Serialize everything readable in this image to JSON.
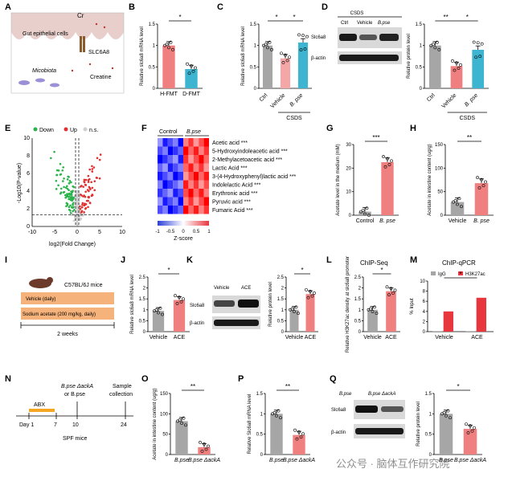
{
  "colors": {
    "gray": "#a6a6a6",
    "coral": "#f08080",
    "teal": "#3db5d0",
    "pink": "#f5a6a6",
    "red": "#e03030",
    "green": "#2ab34a",
    "lightgray": "#cfcfcf",
    "orange": "#f5a623",
    "rose": "#f28a8a",
    "hot": "#e8363f"
  },
  "panels": {
    "A": {
      "label": "A",
      "gut": "Gut epithelial cells",
      "cr": "Cr",
      "slc": "SLC6A8",
      "micro": "Micobiota",
      "creatine": "Creatine"
    },
    "B": {
      "label": "B",
      "ylabel": "Relative slc6a8 mRNA level",
      "star": "*"
    },
    "C": {
      "label": "C",
      "ylabel": "Relative slc6a8 mRNA level",
      "group": "CSDS",
      "stars": [
        "*",
        "*"
      ]
    },
    "D": {
      "label": "D",
      "header": "CSDS",
      "lanes": [
        "Ctrl",
        "Vehicle",
        "B.pse"
      ],
      "rows": [
        "Slc6a8",
        "β-actin"
      ],
      "ylabel": "Relative protein level",
      "group": "CSDS",
      "stars": [
        "**",
        "*"
      ]
    },
    "E": {
      "label": "E",
      "legend": [
        "Down",
        "Up",
        "n.s."
      ],
      "ylabel": "-Log10(P-value)",
      "xlabel": "log2(Fold Change)"
    },
    "F": {
      "label": "F",
      "cols": [
        "Control",
        "B.pse"
      ],
      "metabolites": [
        "Acetic acid",
        "5-Hydroxyindoleacetic acid",
        "2-Methylacetoacetic acid",
        "Lactic Acid",
        "3-(4-Hydroxyphenyl)lactic acid",
        "Indolelactic Acid",
        "Erythronic acid",
        "Pyruvic acid",
        "Fumaric Acid"
      ],
      "sig": [
        "***",
        "***",
        "***",
        "***",
        "***",
        "***",
        "***",
        "***",
        "***"
      ],
      "scale": [
        "-1",
        "-0.5",
        "0",
        "0.5",
        "1"
      ],
      "scale_label": "Z-score"
    },
    "G": {
      "label": "G",
      "ylabel": "Acetate level in the medium (mM)",
      "star": "***"
    },
    "H": {
      "label": "H",
      "ylabel": "Acetate in intestine content (ug/g)",
      "star": "**"
    },
    "I": {
      "label": "I",
      "mice": "C57BL/6J mice",
      "vehicle": "Vehicle (daily)",
      "acetate": "Sodium acetate (200 mg/kg, daily)",
      "weeks": "2 weeks"
    },
    "J": {
      "label": "J",
      "ylabel": "Relative slc6a8 mRNA level",
      "star": "*"
    },
    "K": {
      "label": "K",
      "lanes": [
        "Vehicle",
        "ACE"
      ],
      "rows": [
        "Slc6a8",
        "β-actin"
      ],
      "ylabel": "Relative protein level",
      "star": "*"
    },
    "L": {
      "label": "L",
      "title": "ChIP-Seq",
      "ylabel": "Relative H3K27ac density at slc6a8 promoter",
      "star": "*"
    },
    "M": {
      "label": "M",
      "title": "ChIP-qPCR",
      "legend": [
        "IgG",
        "H3K27ac"
      ],
      "ylabel": "% Input",
      "star": "*"
    },
    "N": {
      "label": "N",
      "abx": "ABX",
      "treat": "B.pse ΔackA",
      "treat2": "or B.pse",
      "collect": "Sample",
      "collect2": "collection",
      "ticks": [
        "Day 1",
        "7",
        "10",
        "24"
      ],
      "mice": "SPF mice"
    },
    "O": {
      "label": "O",
      "ylabel": "Acetate in intestine content (ug/g)",
      "star": "**"
    },
    "P": {
      "label": "P",
      "ylabel": "Relative Slc6a8 mRNA level",
      "star": "**"
    },
    "Q": {
      "label": "Q",
      "lanes": [
        "B.pse",
        "B.pse ΔackA"
      ],
      "rows": [
        "Slc6a8",
        "β-actin"
      ],
      "ylabel": "Relative protein level",
      "star": "*"
    }
  },
  "watermark": "公众号 · 脑体互作研究院",
  "chart_data": [
    {
      "type": "bar",
      "panel": "B",
      "categories": [
        "H-FMT",
        "D-FMT"
      ],
      "values": [
        1.0,
        0.45
      ],
      "ylim": [
        0,
        1.5
      ],
      "yticks": [
        0,
        0.5,
        1,
        1.5
      ]
    },
    {
      "type": "bar",
      "panel": "C",
      "categories": [
        "Ctrl",
        "Vehicle",
        "B. pse"
      ],
      "values": [
        1.0,
        0.7,
        1.07
      ],
      "ylim": [
        0,
        1.5
      ],
      "yticks": [
        0,
        0.5,
        1,
        1.5
      ]
    },
    {
      "type": "bar",
      "panel": "D",
      "categories": [
        "Ctrl",
        "Vehicle",
        "B. pse"
      ],
      "values": [
        1.0,
        0.52,
        0.9
      ],
      "ylim": [
        0,
        1.5
      ],
      "yticks": [
        0,
        0.5,
        1,
        1.5
      ]
    },
    {
      "type": "scatter",
      "panel": "E",
      "xlim": [
        -10,
        10
      ],
      "ylim": [
        0,
        10
      ],
      "xticks": [
        -10,
        -5,
        0,
        5,
        10
      ],
      "yticks": [
        0,
        2,
        4,
        6,
        8,
        10
      ]
    },
    {
      "type": "bar",
      "panel": "G",
      "categories": [
        "Control",
        "B. pse"
      ],
      "values": [
        1.5,
        22.5
      ],
      "ylim": [
        0,
        30
      ],
      "yticks": [
        0,
        10,
        20,
        30
      ]
    },
    {
      "type": "bar",
      "panel": "H",
      "categories": [
        "Vehicle",
        "B. pse"
      ],
      "values": [
        28,
        68
      ],
      "ylim": [
        0,
        150
      ],
      "yticks": [
        0,
        50,
        100,
        150
      ]
    },
    {
      "type": "bar",
      "panel": "J",
      "categories": [
        "Vehicle",
        "ACE"
      ],
      "values": [
        0.95,
        1.45
      ],
      "ylim": [
        0,
        2.5
      ],
      "yticks": [
        0,
        0.5,
        1,
        1.5,
        2,
        2.5
      ]
    },
    {
      "type": "bar",
      "panel": "K",
      "categories": [
        "Vehicle",
        "ACE"
      ],
      "values": [
        1.0,
        1.72
      ],
      "ylim": [
        0,
        2.5
      ],
      "yticks": [
        0,
        0.5,
        1,
        1.5,
        2,
        2.5
      ]
    },
    {
      "type": "bar",
      "panel": "L",
      "categories": [
        "Vehicle",
        "ACE"
      ],
      "values": [
        1.0,
        1.85
      ],
      "ylim": [
        0,
        2.5
      ],
      "yticks": [
        0,
        0.5,
        1,
        1.5,
        2,
        2.5
      ]
    },
    {
      "type": "bar",
      "panel": "M",
      "categories": [
        "Vehicle",
        "ACE"
      ],
      "series": [
        {
          "name": "IgG",
          "values": [
            0.1,
            0.1
          ]
        },
        {
          "name": "H3K27ac",
          "values": [
            4.0,
            6.7
          ]
        }
      ],
      "ylim": [
        0,
        10
      ],
      "yticks": [
        0,
        2,
        4,
        6,
        8,
        10
      ]
    },
    {
      "type": "bar",
      "panel": "O",
      "categories": [
        "B.pse",
        "B.pse ΔackA"
      ],
      "values": [
        82,
        18
      ],
      "ylim": [
        0,
        150
      ],
      "yticks": [
        0,
        50,
        100,
        150
      ]
    },
    {
      "type": "bar",
      "panel": "P",
      "categories": [
        "B.pse",
        "B.pse ΔackA"
      ],
      "values": [
        1.0,
        0.48
      ],
      "ylim": [
        0,
        1.5
      ],
      "yticks": [
        0,
        0.5,
        1,
        1.5
      ]
    },
    {
      "type": "bar",
      "panel": "Q",
      "categories": [
        "B.pse",
        "B.pse ΔackA"
      ],
      "values": [
        1.0,
        0.63
      ],
      "ylim": [
        0,
        1.5
      ],
      "yticks": [
        0,
        0.5,
        1,
        1.5
      ]
    }
  ]
}
